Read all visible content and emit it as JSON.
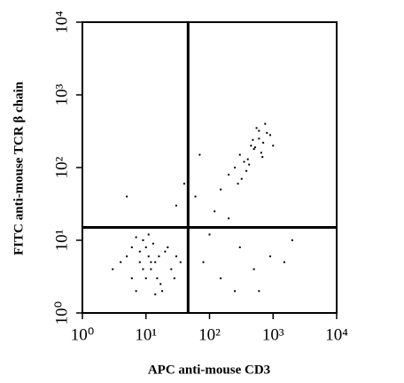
{
  "chart_data": {
    "type": "scatter",
    "x_label": "APC anti-mouse CD3",
    "y_label": "FITC anti-mouse TCR β chain",
    "x": [
      8,
      12,
      5,
      15,
      20,
      10,
      7,
      9,
      14,
      25,
      30,
      6,
      4,
      11,
      18,
      13,
      9,
      16,
      22,
      8,
      10,
      12,
      7,
      35,
      3,
      17,
      28,
      11,
      6,
      14,
      300,
      450,
      600,
      250,
      800,
      500,
      350,
      700,
      400,
      550,
      200,
      900,
      650,
      380,
      480,
      320,
      750,
      1000,
      420,
      280,
      520,
      600,
      150,
      680,
      80,
      150,
      300,
      500,
      2000,
      120,
      60,
      250,
      900,
      30,
      40,
      100,
      600,
      1500,
      200,
      5,
      2,
      70
    ],
    "values": [
      5,
      4,
      6,
      3,
      7,
      8,
      2,
      10,
      5,
      4,
      6,
      3,
      5,
      12,
      2,
      9,
      4,
      6,
      8,
      7,
      3,
      5,
      11,
      5,
      4,
      2.5,
      3,
      6,
      8,
      1.8,
      150,
      200,
      250,
      100,
      300,
      180,
      120,
      220,
      130,
      350,
      80,
      280,
      160,
      90,
      240,
      70,
      400,
      200,
      110,
      60,
      190,
      320,
      50,
      140,
      5,
      3,
      8,
      4,
      10,
      25,
      40,
      2,
      6,
      30,
      60,
      12,
      2,
      5,
      20,
      40,
      15,
      150
    ],
    "color": "#000000",
    "xlim": [
      1,
      10000
    ],
    "ylim": [
      1,
      10000
    ],
    "x_log": true,
    "y_log": true,
    "xticks": [
      {
        "value": 1,
        "label": "10⁰"
      },
      {
        "value": 10,
        "label": "10¹"
      },
      {
        "value": 100,
        "label": "10²"
      },
      {
        "value": 1000,
        "label": "10³"
      },
      {
        "value": 10000,
        "label": "10⁴"
      }
    ],
    "yticks": [
      {
        "value": 1,
        "label": "10⁰"
      },
      {
        "value": 10,
        "label": "10¹"
      },
      {
        "value": 100,
        "label": "10²"
      },
      {
        "value": 1000,
        "label": "10³"
      },
      {
        "value": 10000,
        "label": "10⁴"
      }
    ],
    "quadrant_x": 46,
    "quadrant_y": 15
  }
}
